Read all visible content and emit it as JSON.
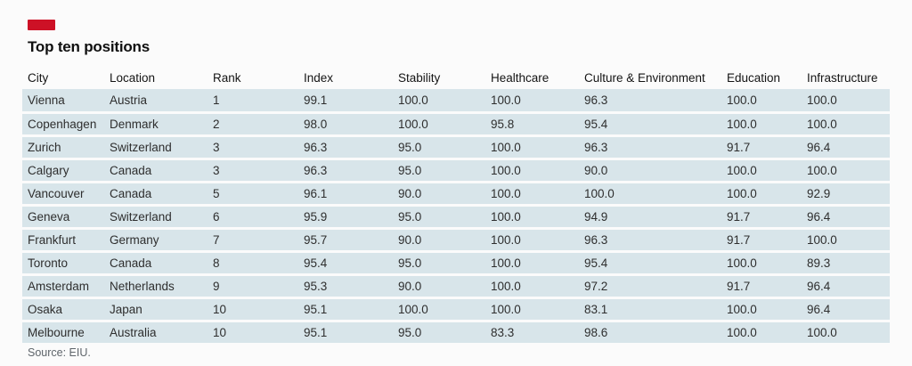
{
  "title": "Top ten positions",
  "source": "Source: EIU.",
  "colors": {
    "accent": "#cd1126",
    "row_background": "#d8e5ea",
    "page_background": "#fbfbfb"
  },
  "chart_data": {
    "type": "table",
    "title": "Top ten positions",
    "columns": [
      "City",
      "Location",
      "Rank",
      "Index",
      "Stability",
      "Healthcare",
      "Culture & Environment",
      "Education",
      "Infrastructure"
    ],
    "rows": [
      [
        "Vienna",
        "Austria",
        "1",
        "99.1",
        "100.0",
        "100.0",
        "96.3",
        "100.0",
        "100.0"
      ],
      [
        "Copenhagen",
        "Denmark",
        "2",
        "98.0",
        "100.0",
        "95.8",
        "95.4",
        "100.0",
        "100.0"
      ],
      [
        "Zurich",
        "Switzerland",
        "3",
        "96.3",
        "95.0",
        "100.0",
        "96.3",
        "91.7",
        "96.4"
      ],
      [
        "Calgary",
        "Canada",
        "3",
        "96.3",
        "95.0",
        "100.0",
        "90.0",
        "100.0",
        "100.0"
      ],
      [
        "Vancouver",
        "Canada",
        "5",
        "96.1",
        "90.0",
        "100.0",
        "100.0",
        "100.0",
        "92.9"
      ],
      [
        "Geneva",
        "Switzerland",
        "6",
        "95.9",
        "95.0",
        "100.0",
        "94.9",
        "91.7",
        "96.4"
      ],
      [
        "Frankfurt",
        "Germany",
        "7",
        "95.7",
        "90.0",
        "100.0",
        "96.3",
        "91.7",
        "100.0"
      ],
      [
        "Toronto",
        "Canada",
        "8",
        "95.4",
        "95.0",
        "100.0",
        "95.4",
        "100.0",
        "89.3"
      ],
      [
        "Amsterdam",
        "Netherlands",
        "9",
        "95.3",
        "90.0",
        "100.0",
        "97.2",
        "91.7",
        "96.4"
      ],
      [
        "Osaka",
        "Japan",
        "10",
        "95.1",
        "100.0",
        "100.0",
        "83.1",
        "100.0",
        "96.4"
      ],
      [
        "Melbourne",
        "Australia",
        "10",
        "95.1",
        "95.0",
        "83.3",
        "98.6",
        "100.0",
        "100.0"
      ]
    ]
  }
}
